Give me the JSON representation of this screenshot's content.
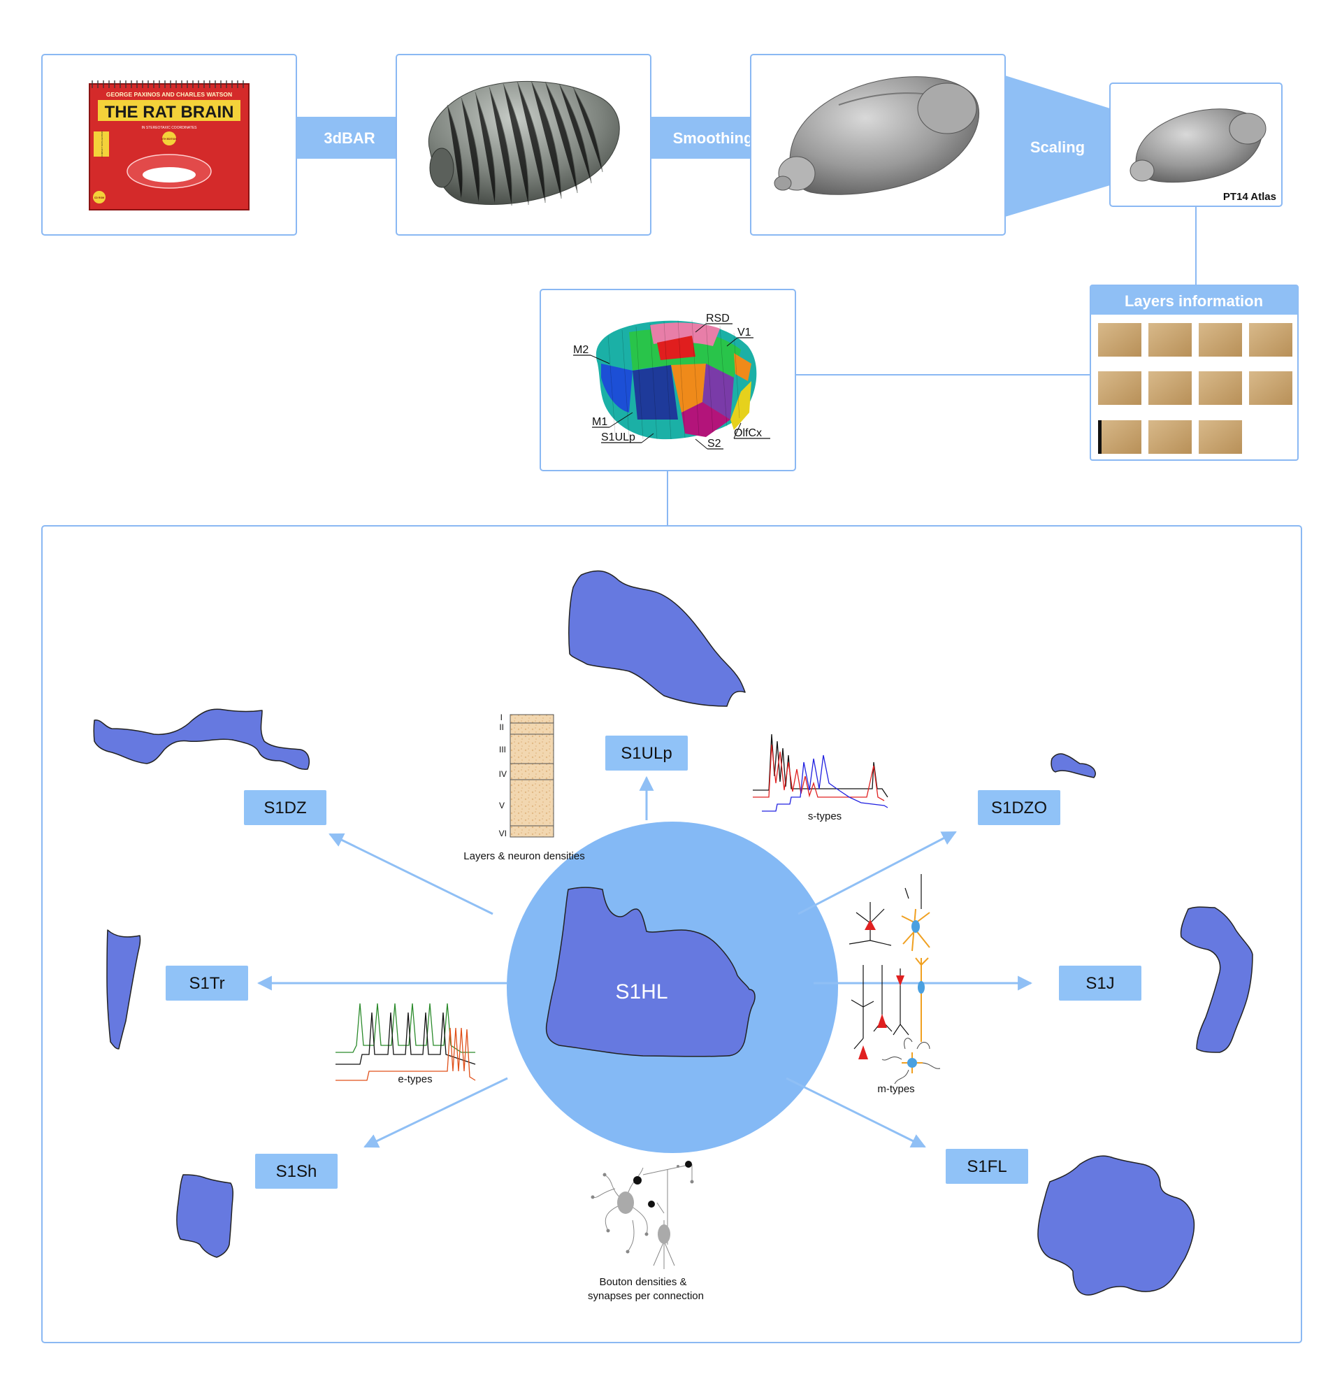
{
  "colors": {
    "frame": "#8ab8f3",
    "arrow_fill": "#8fbff5",
    "label_box": "#90c2f7",
    "center_circle": "#84b9f5",
    "region_fill": "#6679e0",
    "region_stroke": "#222222"
  },
  "pipeline": {
    "book": {
      "authors": "GEORGE PAXINOS AND CHARLES WATSON",
      "title": "THE RAT BRAIN",
      "subtitle": "IN STEREOTAXIC COORDINATES",
      "edition_badge": "6TH EDITION",
      "compact_badge": "COMPACT SIXTH EDITION",
      "cd_badge": "CD ROM"
    },
    "step1_label": "3dBAR",
    "step2_label": "Smoothing",
    "step3_label": "Scaling",
    "atlas_caption": "PT14 Atlas",
    "layers_title": "Layers information",
    "atlas_regions": [
      "M2",
      "RSD",
      "V1",
      "M1",
      "S1ULp",
      "S2",
      "OlfCx"
    ]
  },
  "hub": {
    "center_label": "S1HL",
    "targets": [
      "S1ULp",
      "S1DZ",
      "S1DZO",
      "S1Tr",
      "S1J",
      "S1Sh",
      "S1FL"
    ]
  },
  "features": {
    "layers": {
      "caption": "Layers & neuron densities",
      "roman": [
        "I",
        "II",
        "III",
        "IV",
        "V",
        "VI"
      ]
    },
    "stypes": "s-types",
    "etypes": "e-types",
    "mtypes": "m-types",
    "boutons_line1": "Bouton densities &",
    "boutons_line2": "synapses per connection"
  }
}
